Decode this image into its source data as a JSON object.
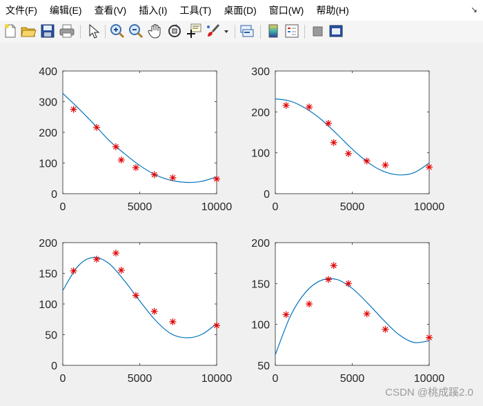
{
  "menu": {
    "items": [
      "文件(F)",
      "编辑(E)",
      "查看(V)",
      "插入(I)",
      "工具(T)",
      "桌面(D)",
      "窗口(W)",
      "帮助(H)"
    ],
    "corner_glyph": "↘"
  },
  "toolbar": {
    "icons": [
      "new-figure-icon",
      "open-file-icon",
      "save-icon",
      "print-icon",
      "edit-plot-arrow-icon",
      "zoom-in-icon",
      "zoom-out-icon",
      "pan-hand-icon",
      "rotate-3d-icon",
      "data-cursor-icon",
      "brush-icon",
      "brush-dropdown-icon",
      "link-plot-icon",
      "insert-colorbar-icon",
      "insert-legend-icon",
      "hide-plot-tools-icon",
      "show-plot-tools-icon"
    ]
  },
  "colors": {
    "curve": "#0072bd",
    "marker": "#e00000",
    "axes": "#262626",
    "plot_bg": "#ffffff",
    "figure_bg": "#f0f0f0"
  },
  "watermark": "CSDN @桃成蹊2.0",
  "chart_data": [
    {
      "type": "scatter",
      "xlim": [
        0,
        10000
      ],
      "ylim": [
        0,
        400
      ],
      "xticks": [
        0,
        5000,
        10000
      ],
      "yticks": [
        0,
        100,
        200,
        300,
        400
      ],
      "x": [
        700,
        2200,
        3450,
        3800,
        4750,
        5950,
        7150,
        10000
      ],
      "y": [
        275,
        216,
        153,
        110,
        85,
        62,
        52,
        48
      ],
      "fit": [
        [
          0,
          327
        ],
        [
          1000,
          279
        ],
        [
          2000,
          228
        ],
        [
          3000,
          174
        ],
        [
          4000,
          131
        ],
        [
          5000,
          92
        ],
        [
          6000,
          62
        ],
        [
          7000,
          44
        ],
        [
          8000,
          37
        ],
        [
          9000,
          40
        ],
        [
          10000,
          55
        ]
      ],
      "grid": false
    },
    {
      "type": "scatter",
      "xlim": [
        0,
        10000
      ],
      "ylim": [
        0,
        300
      ],
      "xticks": [
        0,
        5000,
        10000
      ],
      "yticks": [
        0,
        100,
        200,
        300
      ],
      "x": [
        700,
        2200,
        3450,
        3800,
        4750,
        5950,
        7150,
        10000
      ],
      "y": [
        216,
        212,
        172,
        125,
        98,
        80,
        70,
        65
      ],
      "fit": [
        [
          0,
          232
        ],
        [
          1000,
          226
        ],
        [
          2000,
          208
        ],
        [
          3000,
          181
        ],
        [
          4000,
          146
        ],
        [
          5000,
          109
        ],
        [
          6000,
          77
        ],
        [
          7000,
          55
        ],
        [
          8000,
          46
        ],
        [
          9000,
          51
        ],
        [
          10000,
          75
        ]
      ],
      "grid": false
    },
    {
      "type": "scatter",
      "xlim": [
        0,
        10000
      ],
      "ylim": [
        0,
        200
      ],
      "xticks": [
        0,
        5000,
        10000
      ],
      "yticks": [
        0,
        50,
        100,
        150,
        200
      ],
      "x": [
        700,
        2200,
        3450,
        3800,
        4750,
        5950,
        7150,
        10000
      ],
      "y": [
        154,
        173,
        183,
        155,
        114,
        88,
        71,
        65
      ],
      "fit": [
        [
          0,
          122
        ],
        [
          1000,
          162
        ],
        [
          2000,
          176
        ],
        [
          3000,
          166
        ],
        [
          4000,
          138
        ],
        [
          5000,
          105
        ],
        [
          6000,
          74
        ],
        [
          7000,
          52
        ],
        [
          8000,
          45
        ],
        [
          9000,
          50
        ],
        [
          10000,
          68
        ]
      ],
      "grid": false
    },
    {
      "type": "scatter",
      "xlim": [
        0,
        10000
      ],
      "ylim": [
        50,
        200
      ],
      "xticks": [
        0,
        5000,
        10000
      ],
      "yticks": [
        50,
        100,
        150,
        200
      ],
      "x": [
        700,
        2200,
        3450,
        3800,
        4750,
        5950,
        7150,
        10000
      ],
      "y": [
        112,
        125,
        155,
        172,
        150,
        113,
        94,
        84
      ],
      "fit": [
        [
          0,
          63
        ],
        [
          1000,
          111
        ],
        [
          2000,
          140
        ],
        [
          3000,
          154
        ],
        [
          4000,
          155
        ],
        [
          5000,
          144
        ],
        [
          6000,
          126
        ],
        [
          7000,
          106
        ],
        [
          8000,
          88
        ],
        [
          9000,
          78
        ],
        [
          10000,
          80
        ]
      ],
      "grid": false
    }
  ]
}
